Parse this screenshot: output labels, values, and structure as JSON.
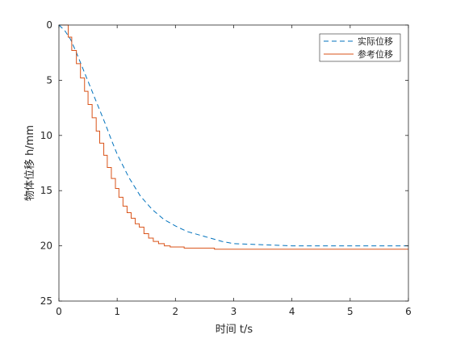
{
  "chart_data": {
    "type": "line",
    "xlabel": "时间 t/s",
    "ylabel": "物体位移 h/mm",
    "xlim": [
      0,
      6
    ],
    "ylim": [
      0,
      25
    ],
    "y_reversed": true,
    "grid": false,
    "legend_position": "top-right",
    "x_ticks": [
      0,
      1,
      2,
      3,
      4,
      5,
      6
    ],
    "y_ticks": [
      0,
      5,
      10,
      15,
      20,
      25
    ],
    "series": [
      {
        "name": "实际位移",
        "color": "#0072BD",
        "style": "dashed",
        "x": [
          0,
          0.1,
          0.2,
          0.3,
          0.4,
          0.5,
          0.6,
          0.7,
          0.8,
          0.9,
          1.0,
          1.2,
          1.4,
          1.6,
          1.8,
          2.0,
          2.2,
          2.4,
          2.6,
          2.8,
          3.0,
          3.5,
          4.0,
          4.5,
          5.0,
          5.5,
          6.0
        ],
        "y": [
          0,
          0.5,
          1.3,
          2.5,
          3.8,
          5.1,
          6.4,
          7.7,
          9.0,
          10.4,
          11.7,
          13.8,
          15.5,
          16.7,
          17.6,
          18.2,
          18.7,
          19.0,
          19.3,
          19.6,
          19.8,
          19.9,
          20.0,
          20.0,
          20.0,
          20.0,
          20.0
        ]
      },
      {
        "name": "参考位移",
        "color": "#D95319",
        "style": "solid",
        "x": [
          0,
          0.16,
          0.16,
          0.22,
          0.22,
          0.3,
          0.3,
          0.37,
          0.37,
          0.44,
          0.44,
          0.5,
          0.5,
          0.57,
          0.57,
          0.64,
          0.64,
          0.7,
          0.7,
          0.77,
          0.77,
          0.83,
          0.83,
          0.9,
          0.9,
          0.97,
          0.97,
          1.03,
          1.03,
          1.1,
          1.1,
          1.17,
          1.17,
          1.24,
          1.24,
          1.31,
          1.31,
          1.38,
          1.38,
          1.46,
          1.46,
          1.54,
          1.54,
          1.62,
          1.62,
          1.71,
          1.71,
          1.81,
          1.81,
          1.91,
          1.91,
          2.15,
          2.15,
          2.67,
          2.67,
          6.0
        ],
        "y": [
          0,
          0,
          1.1,
          1.1,
          2.3,
          2.3,
          3.5,
          3.5,
          4.8,
          4.8,
          6.0,
          6.0,
          7.2,
          7.2,
          8.4,
          8.4,
          9.6,
          9.6,
          10.7,
          10.7,
          11.8,
          11.8,
          12.9,
          12.9,
          13.9,
          13.9,
          14.8,
          14.8,
          15.6,
          15.6,
          16.4,
          16.4,
          17.0,
          17.0,
          17.5,
          17.5,
          18.0,
          18.0,
          18.3,
          18.3,
          18.9,
          18.9,
          19.3,
          19.3,
          19.6,
          19.6,
          19.8,
          19.8,
          20.0,
          20.0,
          20.1,
          20.1,
          20.2,
          20.2,
          20.3,
          20.3
        ]
      }
    ]
  }
}
